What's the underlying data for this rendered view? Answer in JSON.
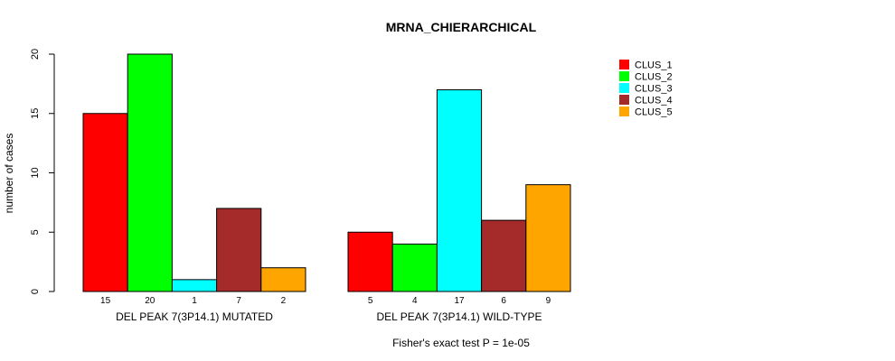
{
  "chart_data": {
    "type": "bar",
    "title": "MRNA_CHIERARCHICAL",
    "xlabel": "",
    "ylabel": "number of cases",
    "ylim": [
      0,
      20
    ],
    "yticks": [
      0,
      5,
      10,
      15,
      20
    ],
    "legend_position": "top-right",
    "groups": [
      "DEL PEAK  7(3P14.1) MUTATED",
      "DEL PEAK  7(3P14.1) WILD-TYPE"
    ],
    "series": [
      {
        "name": "CLUS_1",
        "color": "#ff0000",
        "values": [
          15,
          5
        ]
      },
      {
        "name": "CLUS_2",
        "color": "#00ff00",
        "values": [
          20,
          4
        ]
      },
      {
        "name": "CLUS_3",
        "color": "#00ffff",
        "values": [
          1,
          17
        ]
      },
      {
        "name": "CLUS_4",
        "color": "#a52a2a",
        "values": [
          7,
          6
        ]
      },
      {
        "name": "CLUS_5",
        "color": "#ffa500",
        "values": [
          2,
          9
        ]
      }
    ],
    "footnote": "Fisher's exact test P = 1e-05"
  }
}
